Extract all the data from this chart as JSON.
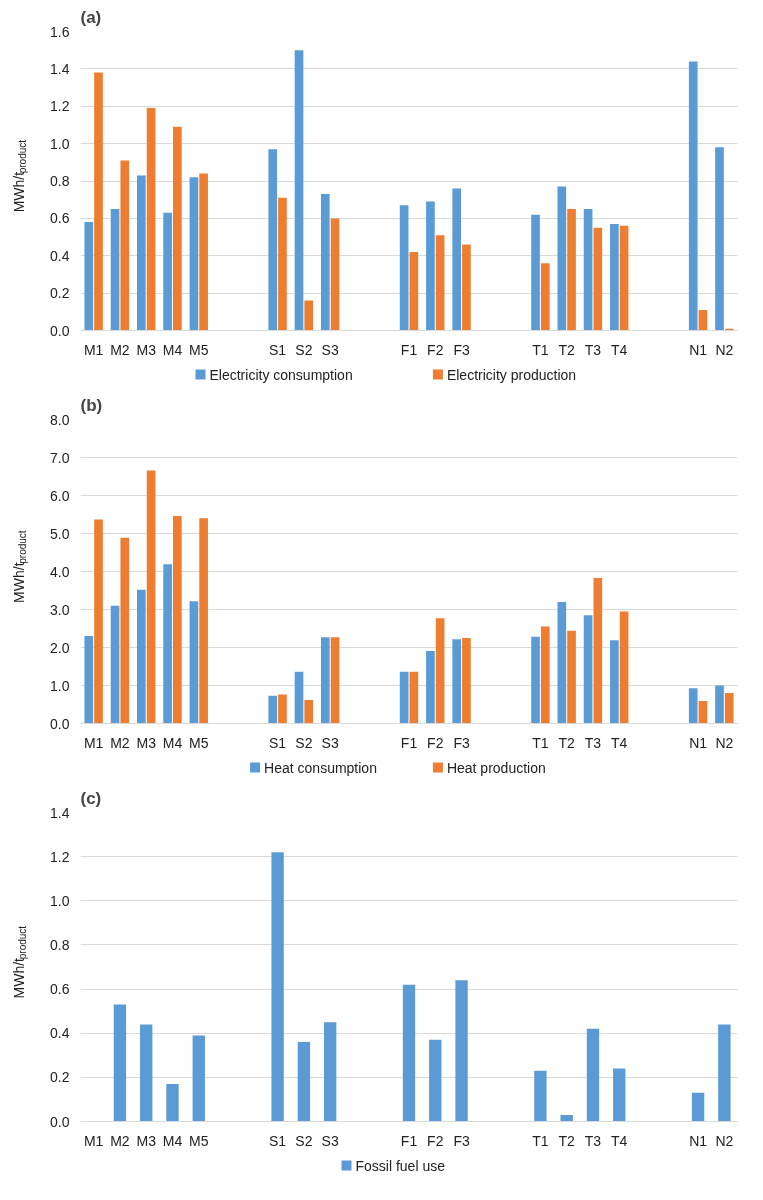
{
  "chart_data": [
    {
      "type": "bar",
      "title": "(a)",
      "ylabel": "MWh/t$_{product}$",
      "categories": [
        "M1",
        "M2",
        "M3",
        "M4",
        "M5",
        null,
        null,
        "S1",
        "S2",
        "S3",
        null,
        null,
        "F1",
        "F2",
        "F3",
        null,
        null,
        "T1",
        "T2",
        "T3",
        "T4",
        null,
        null,
        "N1",
        "N2"
      ],
      "series": [
        {
          "name": "Electricity consumption",
          "color": "#5b9bd5",
          "values": [
            0.58,
            0.65,
            0.83,
            0.63,
            0.82,
            null,
            null,
            0.97,
            1.5,
            0.73,
            null,
            null,
            0.67,
            0.69,
            0.76,
            null,
            null,
            0.62,
            0.77,
            0.65,
            0.57,
            null,
            null,
            1.44,
            0.98
          ]
        },
        {
          "name": "Electricity production",
          "color": "#ed7d31",
          "values": [
            1.38,
            0.91,
            1.19,
            1.09,
            0.84,
            null,
            null,
            0.71,
            0.16,
            0.6,
            null,
            null,
            0.42,
            0.51,
            0.46,
            null,
            null,
            0.36,
            0.65,
            0.55,
            0.56,
            null,
            null,
            0.11,
            0.01
          ]
        }
      ],
      "ylim": [
        0,
        1.6
      ],
      "yticks": [
        {
          "value": 0,
          "label": "0.0"
        },
        {
          "value": 0.2,
          "label": "0.2"
        },
        {
          "value": 0.4,
          "label": "0.4"
        },
        {
          "value": 0.6,
          "label": "0.6"
        },
        {
          "value": 0.8,
          "label": "0.8"
        },
        {
          "value": 1.0,
          "label": "1.0"
        },
        {
          "value": 1.2,
          "label": "1.2"
        },
        {
          "value": 1.4,
          "label": "1.4"
        },
        {
          "value": 1.6,
          "label": "1.6"
        }
      ],
      "grid": "y",
      "legend": "bottom"
    },
    {
      "type": "bar",
      "title": "(b)",
      "ylabel": "MWh/t$_{product}$",
      "categories": [
        "M1",
        "M2",
        "M3",
        "M4",
        "M5",
        null,
        null,
        "S1",
        "S2",
        "S3",
        null,
        null,
        "F1",
        "F2",
        "F3",
        null,
        null,
        "T1",
        "T2",
        "T3",
        "T4",
        null,
        null,
        "N1",
        "N2"
      ],
      "series": [
        {
          "name": "Heat consumption",
          "color": "#5b9bd5",
          "values": [
            2.3,
            3.1,
            3.52,
            4.19,
            3.22,
            null,
            null,
            0.73,
            1.36,
            2.27,
            null,
            null,
            1.36,
            1.91,
            2.22,
            null,
            null,
            2.28,
            3.2,
            2.85,
            2.19,
            null,
            null,
            0.93,
            1.0
          ]
        },
        {
          "name": "Heat production",
          "color": "#ed7d31",
          "values": [
            5.37,
            4.89,
            6.66,
            5.46,
            5.4,
            null,
            null,
            0.76,
            0.62,
            2.27,
            null,
            null,
            1.36,
            2.77,
            2.25,
            null,
            null,
            2.55,
            2.44,
            3.83,
            2.95,
            null,
            null,
            0.59,
            0.8
          ]
        }
      ],
      "ylim": [
        0,
        8
      ],
      "yticks": [
        {
          "value": 0,
          "label": "0.0"
        },
        {
          "value": 1,
          "label": "1.0"
        },
        {
          "value": 2,
          "label": "2.0"
        },
        {
          "value": 3,
          "label": "3.0"
        },
        {
          "value": 4,
          "label": "4.0"
        },
        {
          "value": 5,
          "label": "5.0"
        },
        {
          "value": 6,
          "label": "6.0"
        },
        {
          "value": 7,
          "label": "7.0"
        },
        {
          "value": 8,
          "label": "8.0"
        }
      ],
      "grid": "y",
      "legend": "bottom"
    },
    {
      "type": "bar",
      "title": "(c)",
      "ylabel": "MWh/t$_{product}$",
      "categories": [
        "M1",
        "M2",
        "M3",
        "M4",
        "M5",
        null,
        null,
        "S1",
        "S2",
        "S3",
        null,
        null,
        "F1",
        "F2",
        "F3",
        null,
        null,
        "T1",
        "T2",
        "T3",
        "T4",
        null,
        null,
        "N1",
        "N2"
      ],
      "series": [
        {
          "name": "Fossil fuel use",
          "color": "#5b9bd5",
          "values": [
            null,
            0.53,
            0.44,
            0.17,
            0.39,
            null,
            null,
            1.22,
            0.36,
            0.45,
            null,
            null,
            0.62,
            0.37,
            0.64,
            null,
            null,
            0.23,
            0.03,
            0.42,
            0.24,
            null,
            null,
            0.13,
            0.44
          ]
        }
      ],
      "ylim": [
        0,
        1.4
      ],
      "yticks": [
        {
          "value": 0,
          "label": "0.0"
        },
        {
          "value": 0.2,
          "label": "0.2"
        },
        {
          "value": 0.4,
          "label": "0.4"
        },
        {
          "value": 0.6,
          "label": "0.6"
        },
        {
          "value": 0.8,
          "label": "0.8"
        },
        {
          "value": 1.0,
          "label": "1.0"
        },
        {
          "value": 1.2,
          "label": "1.2"
        },
        {
          "value": 1.4,
          "label": "1.4"
        }
      ],
      "grid": "y",
      "legend": "bottom"
    }
  ]
}
